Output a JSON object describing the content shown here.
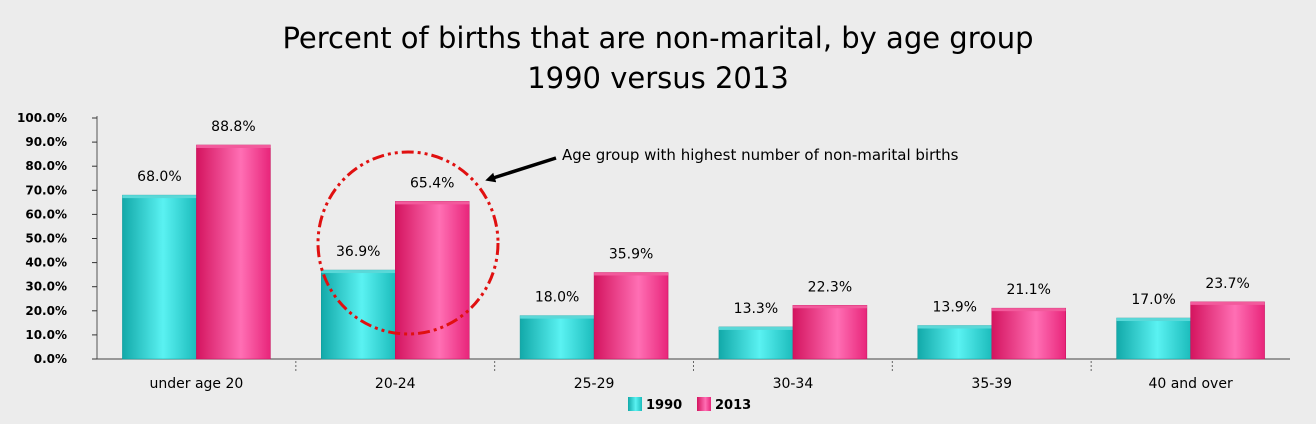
{
  "chart_data": {
    "type": "bar",
    "title": "Percent of births that are non-marital, by age group",
    "subtitle": "1990 versus 2013",
    "categories": [
      "under age 20",
      "20-24",
      "25-29",
      "30-34",
      "35-39",
      "40 and over"
    ],
    "series": [
      {
        "name": "1990",
        "values": [
          68.0,
          36.9,
          18.0,
          13.3,
          13.9,
          17.0
        ],
        "labels": [
          "68.0%",
          "36.9%",
          "18.0%",
          "13.3%",
          "13.9%",
          "17.0%"
        ],
        "color": "#2ec8c8"
      },
      {
        "name": "2013",
        "values": [
          88.8,
          65.4,
          35.9,
          22.3,
          21.1,
          23.7
        ],
        "labels": [
          "88.8%",
          "65.4%",
          "35.9%",
          "22.3%",
          "21.1%",
          "23.7%"
        ],
        "color": "#ee2a7e"
      }
    ],
    "yticks": [
      "0.0%",
      "10.0%",
      "20.0%",
      "30.0%",
      "40.0%",
      "50.0%",
      "60.0%",
      "70.0%",
      "80.0%",
      "90.0%",
      "100.0%"
    ],
    "ylim": [
      0,
      100
    ],
    "grid": false,
    "legend": "bottom-center",
    "annotation": {
      "text": "Age group with highest number of non-marital births",
      "target_category": "20-24",
      "circle_color": "#e01010"
    }
  }
}
